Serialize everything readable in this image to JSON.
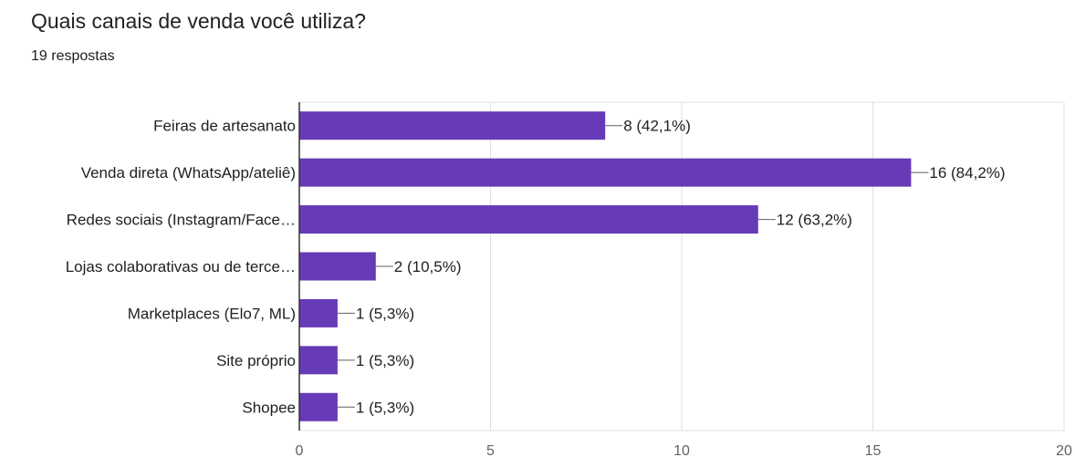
{
  "question": {
    "title": "Quais canais de venda você utiliza?",
    "responses": "19 respostas"
  },
  "colors": {
    "bar": "#673ab7",
    "gridline": "#e0e0e0",
    "axis": "#333333",
    "label_text": "#212121",
    "tick_text": "#5f6368"
  },
  "chart_data": {
    "type": "bar",
    "orientation": "horizontal",
    "categories": [
      "Feiras de artesanato",
      "Venda direta (WhatsApp/ateliê)",
      "Redes sociais (Instagram/Face…",
      "Lojas colaborativas ou de terce…",
      "Marketplaces (Elo7, ML)",
      "Site próprio",
      "Shopee"
    ],
    "values": [
      8,
      16,
      12,
      2,
      1,
      1,
      1
    ],
    "data_labels": [
      "8 (42,1%)",
      "16 (84,2%)",
      "12 (63,2%)",
      "2 (10,5%)",
      "1 (5,3%)",
      "1 (5,3%)",
      "1 (5,3%)"
    ],
    "xlim": [
      0,
      20
    ],
    "xticks": [
      "0",
      "5",
      "10",
      "15",
      "20"
    ],
    "grid": true,
    "legend": "none",
    "title": "",
    "xlabel": "",
    "ylabel": ""
  }
}
